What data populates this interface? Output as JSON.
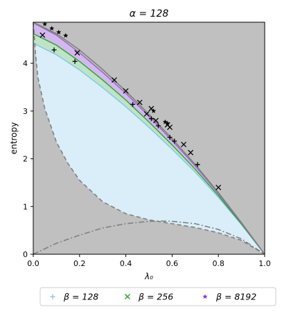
{
  "chart_data": {
    "type": "scatter",
    "title": "α = 128",
    "xlabel": "λ₀",
    "ylabel": "entropy",
    "xlim": [
      0.0,
      1.0
    ],
    "ylim": [
      0.0,
      4.86
    ],
    "xticks": [
      "0.0",
      "0.2",
      "0.4",
      "0.6",
      "0.8",
      "1.0"
    ],
    "yticks": [
      "0",
      "1",
      "2",
      "3",
      "4"
    ],
    "background": "#c0c0c0",
    "grid": false,
    "legend": {
      "placement": "bottom",
      "entries": [
        {
          "label": "β = 128",
          "marker": "+",
          "color": "#87ceeb"
        },
        {
          "label": "β = 256",
          "marker": "x",
          "color": "#2ca02c"
        },
        {
          "label": "β = 8192",
          "marker": "*",
          "color": "#8a2be2"
        }
      ]
    },
    "series": [
      {
        "name": "β = 128",
        "marker": "+",
        "points": [
          [
            0.09,
            4.28
          ],
          [
            0.18,
            4.04
          ],
          [
            0.43,
            3.14
          ],
          [
            0.51,
            2.84
          ],
          [
            0.54,
            2.69
          ],
          [
            0.59,
            2.45
          ],
          [
            0.61,
            2.37
          ],
          [
            0.71,
            1.88
          ]
        ]
      },
      {
        "name": "β = 256",
        "marker": "x",
        "points": [
          [
            0.04,
            4.59
          ],
          [
            0.19,
            4.22
          ],
          [
            0.35,
            3.65
          ],
          [
            0.4,
            3.42
          ],
          [
            0.46,
            3.18
          ],
          [
            0.49,
            2.94
          ],
          [
            0.51,
            3.05
          ],
          [
            0.53,
            2.8
          ],
          [
            0.58,
            2.71
          ],
          [
            0.59,
            2.66
          ],
          [
            0.65,
            2.3
          ],
          [
            0.68,
            2.13
          ],
          [
            0.8,
            1.4
          ]
        ]
      },
      {
        "name": "β = 8192",
        "marker": "*",
        "points": [
          [
            0.05,
            4.82
          ],
          [
            0.08,
            4.73
          ],
          [
            0.11,
            4.65
          ],
          [
            0.14,
            4.58
          ],
          [
            0.52,
            3.0
          ],
          [
            0.57,
            2.77
          ],
          [
            0.58,
            2.74
          ]
        ]
      }
    ],
    "curves": {
      "upper_gray": [
        [
          0.0,
          4.86
        ],
        [
          0.1,
          4.62
        ],
        [
          0.2,
          4.28
        ],
        [
          0.3,
          3.87
        ],
        [
          0.4,
          3.42
        ],
        [
          0.5,
          2.93
        ],
        [
          0.6,
          2.42
        ],
        [
          0.7,
          1.88
        ],
        [
          0.8,
          1.29
        ],
        [
          0.9,
          0.66
        ],
        [
          1.0,
          0.0
        ]
      ],
      "beta8192_upper": [
        [
          0.0,
          4.85
        ],
        [
          0.1,
          4.59
        ],
        [
          0.2,
          4.22
        ],
        [
          0.3,
          3.81
        ],
        [
          0.4,
          3.37
        ],
        [
          0.5,
          2.89
        ],
        [
          0.6,
          2.38
        ],
        [
          0.7,
          1.85
        ],
        [
          0.8,
          1.27
        ],
        [
          0.9,
          0.65
        ],
        [
          1.0,
          0.0
        ]
      ],
      "beta256_upper": [
        [
          0.0,
          4.62
        ],
        [
          0.1,
          4.38
        ],
        [
          0.2,
          4.04
        ],
        [
          0.3,
          3.65
        ],
        [
          0.4,
          3.23
        ],
        [
          0.5,
          2.77
        ],
        [
          0.6,
          2.29
        ],
        [
          0.7,
          1.78
        ],
        [
          0.8,
          1.23
        ],
        [
          0.9,
          0.63
        ],
        [
          1.0,
          0.0
        ]
      ],
      "beta128_upper": [
        [
          0.0,
          4.42
        ],
        [
          0.1,
          4.18
        ],
        [
          0.2,
          3.86
        ],
        [
          0.3,
          3.49
        ],
        [
          0.4,
          3.09
        ],
        [
          0.5,
          2.66
        ],
        [
          0.6,
          2.2
        ],
        [
          0.7,
          1.72
        ],
        [
          0.8,
          1.19
        ],
        [
          0.9,
          0.62
        ],
        [
          1.0,
          0.0
        ]
      ],
      "lower_dashed": [
        [
          0.0,
          4.86
        ],
        [
          0.01,
          4.2
        ],
        [
          0.02,
          3.7
        ],
        [
          0.05,
          3.05
        ],
        [
          0.1,
          2.35
        ],
        [
          0.15,
          1.9
        ],
        [
          0.2,
          1.55
        ],
        [
          0.3,
          1.1
        ],
        [
          0.4,
          0.85
        ],
        [
          0.5,
          0.72
        ],
        [
          0.6,
          0.64
        ],
        [
          0.7,
          0.56
        ],
        [
          0.8,
          0.45
        ],
        [
          0.9,
          0.29
        ],
        [
          1.0,
          0.0
        ]
      ],
      "dashdot_arc": [
        [
          0.0,
          0.0
        ],
        [
          0.1,
          0.23
        ],
        [
          0.2,
          0.4
        ],
        [
          0.3,
          0.55
        ],
        [
          0.4,
          0.64
        ],
        [
          0.5,
          0.69
        ],
        [
          0.55,
          0.695
        ],
        [
          0.6,
          0.69
        ],
        [
          0.7,
          0.64
        ],
        [
          0.8,
          0.52
        ],
        [
          0.9,
          0.32
        ],
        [
          1.0,
          0.0
        ]
      ]
    }
  }
}
